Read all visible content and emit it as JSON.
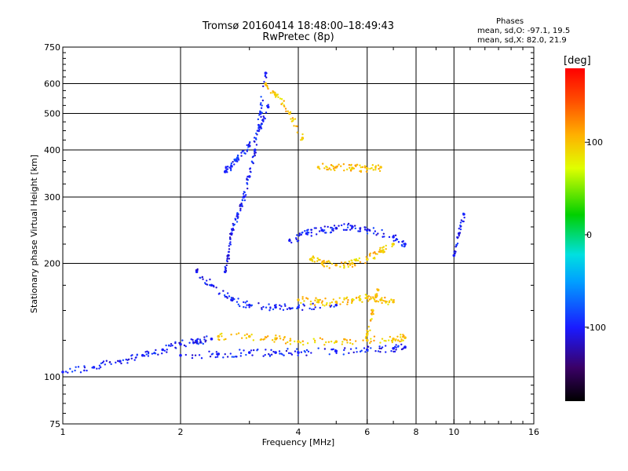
{
  "header": {
    "title": "Tromsø 20160414 18:48:00–18:49:43",
    "subtitle": "RwPretec (8p)"
  },
  "legend": {
    "heading": "Phases",
    "line_o": "mean, sd,O: -97.1, 19.5",
    "line_x": "mean, sd,X:  82.0, 21.9"
  },
  "colorbar": {
    "unit_label": "[deg]",
    "min": -180,
    "max": 180,
    "ticks": [
      "100",
      "0",
      "-100"
    ],
    "tick_values": [
      100,
      0,
      -100
    ]
  },
  "chart_data": {
    "type": "scatter",
    "title": "Tromsø 20160414 18:48:00–18:49:43",
    "subtitle": "RwPretec (8p)",
    "xlabel": "Frequency [MHz]",
    "ylabel": "Stationary phase Virtual Height [km]",
    "x_scale": "log",
    "y_scale": "log",
    "xlim": [
      1,
      16
    ],
    "ylim": [
      75,
      750
    ],
    "x_ticks": [
      1,
      2,
      4,
      6,
      8,
      10,
      16
    ],
    "x_tick_labels": [
      "1",
      "2",
      "4",
      "6",
      "8",
      "10",
      "16"
    ],
    "y_ticks": [
      75,
      100,
      200,
      300,
      400,
      500,
      600,
      750
    ],
    "y_tick_labels": [
      "75",
      "100",
      "200",
      "300",
      "400",
      "500",
      "600",
      "750"
    ],
    "grid": true,
    "color_variable": "phase [deg]",
    "traces": [
      {
        "x": [
          1.0,
          1.2,
          1.4,
          1.6,
          1.8,
          2.0,
          2.2,
          2.4
        ],
        "y": [
          103,
          106,
          110,
          114,
          118,
          122,
          124,
          126
        ],
        "phase": -100
      },
      {
        "x": [
          2.0,
          2.5,
          3.0,
          3.5,
          4.0,
          5.0,
          6.0,
          7.0,
          7.5
        ],
        "y": [
          114,
          115,
          116,
          116,
          116,
          117,
          118,
          119,
          120
        ],
        "phase": -100
      },
      {
        "x": [
          2.5,
          3.0,
          3.5,
          4.0,
          5.0,
          6.0,
          7.0,
          7.5
        ],
        "y": [
          128,
          128,
          126,
          124,
          124,
          125,
          126,
          127
        ],
        "phase": 100
      },
      {
        "x": [
          2.2,
          2.4,
          2.7,
          3.0,
          3.5,
          4.0,
          5.0
        ],
        "y": [
          190,
          175,
          160,
          155,
          153,
          153,
          155
        ],
        "phase": -100
      },
      {
        "x": [
          4.0,
          4.5,
          5.0,
          5.5,
          6.0,
          6.5,
          7.0
        ],
        "y": [
          160,
          158,
          158,
          160,
          162,
          160,
          158
        ],
        "phase": 100
      },
      {
        "x": [
          2.6,
          2.65,
          2.7,
          2.8,
          2.9,
          3.0,
          3.1,
          3.2,
          3.3
        ],
        "y": [
          190,
          210,
          240,
          270,
          300,
          340,
          400,
          500,
          640
        ],
        "phase": -100
      },
      {
        "x": [
          2.6,
          2.7,
          2.8,
          3.0,
          3.2,
          3.35
        ],
        "y": [
          350,
          362,
          380,
          410,
          460,
          520
        ],
        "phase": -100
      },
      {
        "x": [
          4.5,
          5.0,
          5.5,
          6.0,
          6.5
        ],
        "y": [
          360,
          360,
          358,
          357,
          360
        ],
        "phase": 100
      },
      {
        "x": [
          4.3,
          4.6,
          5.0,
          5.5,
          6.0,
          6.5,
          7.0
        ],
        "y": [
          205,
          200,
          198,
          200,
          205,
          215,
          225
        ],
        "phase": 100
      },
      {
        "x": [
          3.8,
          4.2,
          4.6,
          5.0,
          5.5,
          6.0,
          7.0,
          7.5
        ],
        "y": [
          230,
          240,
          245,
          248,
          250,
          245,
          235,
          225
        ],
        "phase": -100
      },
      {
        "x": [
          3.3,
          3.5,
          3.8,
          4.1
        ],
        "y": [
          600,
          560,
          500,
          430
        ],
        "phase": 100
      },
      {
        "x": [
          10.0,
          10.3,
          10.6
        ],
        "y": [
          210,
          240,
          270
        ],
        "phase": -100
      },
      {
        "x": [
          6.0,
          6.2,
          6.4
        ],
        "y": [
          130,
          150,
          170
        ],
        "phase": 100
      }
    ]
  }
}
